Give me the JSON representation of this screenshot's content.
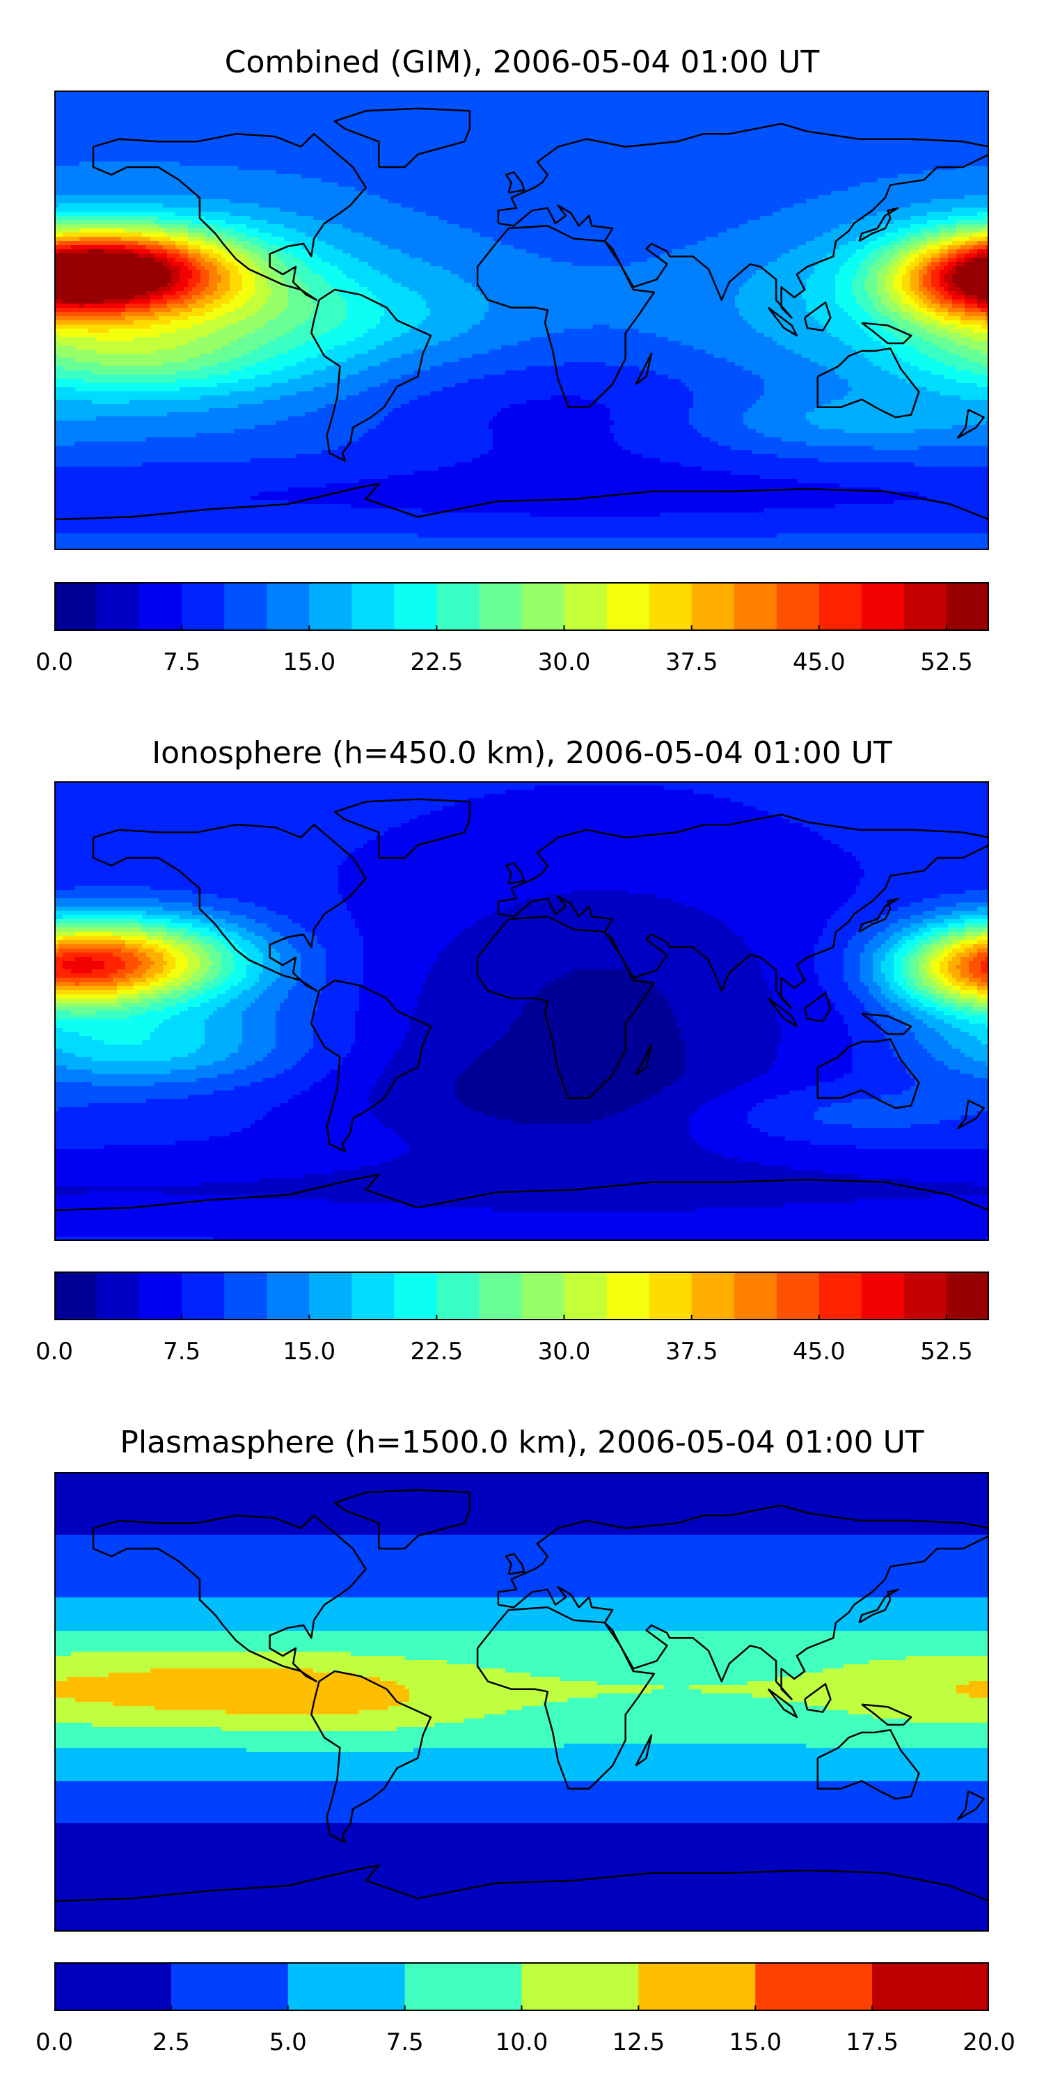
{
  "figure": {
    "panels": [
      {
        "title": "Combined (GIM), 2006-05-04 01:00 UT",
        "quantity": "combined",
        "colorbar": {
          "vmin": 0,
          "vmax": 55,
          "levels": 22,
          "ticks": [
            "0.0",
            "7.5",
            "15.0",
            "22.5",
            "30.0",
            "37.5",
            "45.0",
            "52.5"
          ],
          "tick_values": [
            0,
            7.5,
            15,
            22.5,
            30,
            37.5,
            45,
            52.5
          ]
        }
      },
      {
        "title": "Ionosphere  (h=450.0 km), 2006-05-04 01:00 UT",
        "quantity": "ionosphere",
        "colorbar": {
          "vmin": 0,
          "vmax": 55,
          "levels": 22,
          "ticks": [
            "0.0",
            "7.5",
            "15.0",
            "22.5",
            "30.0",
            "37.5",
            "45.0",
            "52.5"
          ],
          "tick_values": [
            0,
            7.5,
            15,
            22.5,
            30,
            37.5,
            45,
            52.5
          ]
        }
      },
      {
        "title": "Plasmasphere (h=1500.0 km), 2006-05-04 01:00 UT",
        "quantity": "plasmasphere",
        "colorbar": {
          "vmin": 0,
          "vmax": 20,
          "levels": 8,
          "ticks": [
            "0.0",
            "2.5",
            "5.0",
            "7.5",
            "10.0",
            "12.5",
            "15.0",
            "17.5",
            "20.0"
          ],
          "tick_values": [
            0,
            2.5,
            5,
            7.5,
            10,
            12.5,
            15,
            17.5,
            20
          ]
        }
      }
    ],
    "colormap": "jet",
    "map_projection": "equirectangular",
    "lon_range": [
      -180,
      180
    ],
    "lat_range": [
      -90,
      90
    ]
  }
}
